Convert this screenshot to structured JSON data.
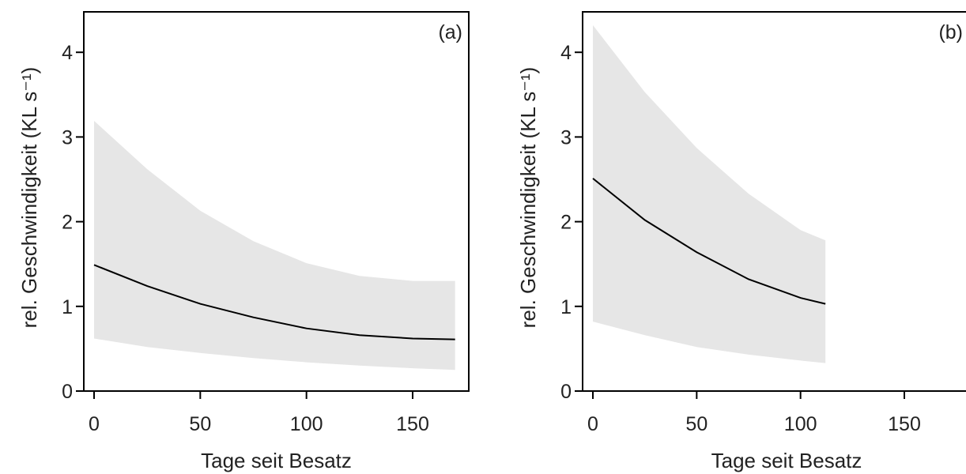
{
  "chart_data": [
    {
      "type": "line",
      "panel_label": "(a)",
      "xlabel": "Tage seit Besatz",
      "ylabel": "rel. Geschwindigkeit (KL s⁻¹)",
      "xlim": [
        0,
        180
      ],
      "ylim": [
        0,
        4.5
      ],
      "xticks": [
        0,
        50,
        100,
        150
      ],
      "yticks": [
        0,
        1,
        2,
        3,
        4
      ],
      "grid": false,
      "series": [
        {
          "x": [
            0,
            25,
            50,
            75,
            100,
            125,
            150,
            170
          ],
          "y": [
            1.49,
            1.24,
            1.03,
            0.87,
            0.74,
            0.66,
            0.62,
            0.61
          ],
          "lower": [
            0.62,
            0.52,
            0.45,
            0.39,
            0.34,
            0.3,
            0.27,
            0.25
          ],
          "upper": [
            3.19,
            2.62,
            2.13,
            1.77,
            1.51,
            1.36,
            1.3,
            1.3
          ]
        }
      ],
      "colors": {
        "line": "#000000",
        "band": "#e6e6e6"
      }
    },
    {
      "type": "line",
      "panel_label": "(b)",
      "xlabel": "Tage seit Besatz",
      "ylabel": "rel. Geschwindigkeit (KL s⁻¹)",
      "xlim": [
        0,
        180
      ],
      "ylim": [
        0,
        4.5
      ],
      "xticks": [
        0,
        50,
        100,
        150
      ],
      "yticks": [
        0,
        1,
        2,
        3,
        4
      ],
      "grid": false,
      "series": [
        {
          "x": [
            0,
            25,
            50,
            75,
            100,
            112
          ],
          "y": [
            2.51,
            2.02,
            1.64,
            1.32,
            1.1,
            1.03
          ],
          "lower": [
            0.82,
            0.66,
            0.52,
            0.43,
            0.36,
            0.33
          ],
          "upper": [
            4.32,
            3.53,
            2.87,
            2.33,
            1.9,
            1.78
          ]
        }
      ],
      "colors": {
        "line": "#000000",
        "band": "#e6e6e6"
      }
    }
  ]
}
